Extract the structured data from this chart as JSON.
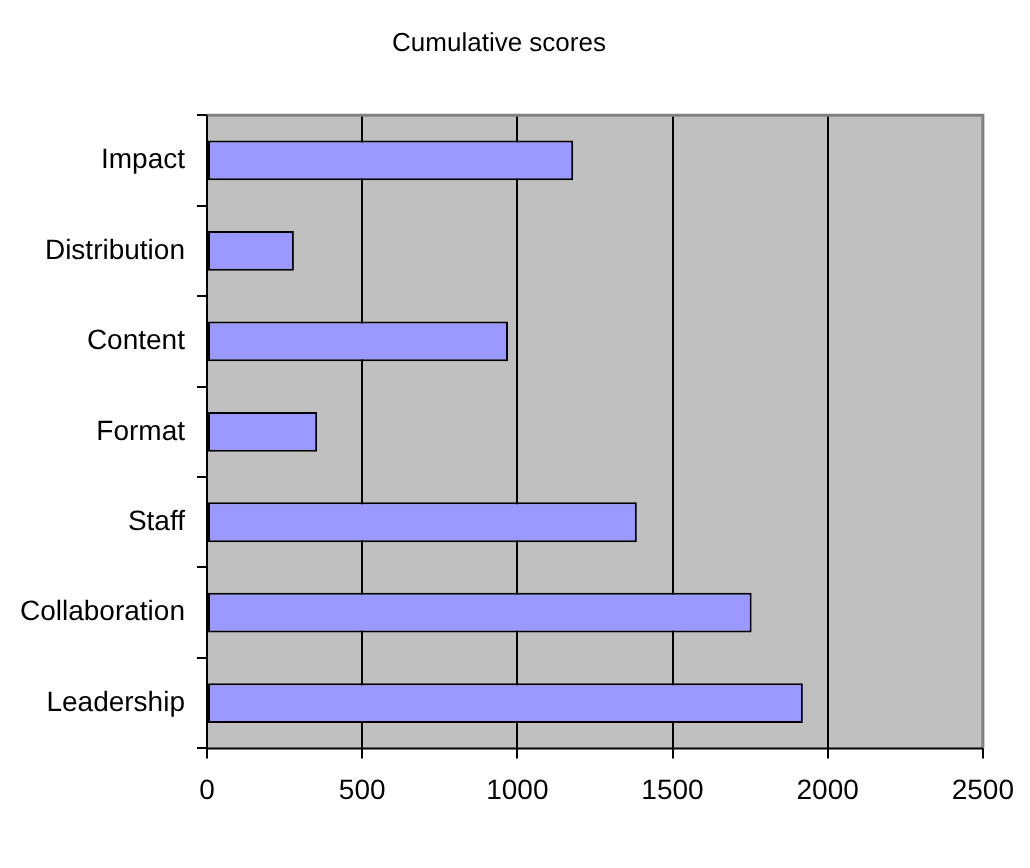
{
  "chart_data": {
    "type": "bar",
    "orientation": "horizontal",
    "title": "Cumulative scores",
    "categories": [
      "Impact",
      "Distribution",
      "Content",
      "Format",
      "Staff",
      "Collaboration",
      "Leadership"
    ],
    "values": [
      1180,
      280,
      970,
      355,
      1385,
      1755,
      1920
    ],
    "color": "#9999ff",
    "xlim": [
      0,
      2500
    ],
    "xticks": [
      0,
      500,
      1000,
      1500,
      2000,
      2500
    ],
    "grid": "x",
    "legend": false
  }
}
